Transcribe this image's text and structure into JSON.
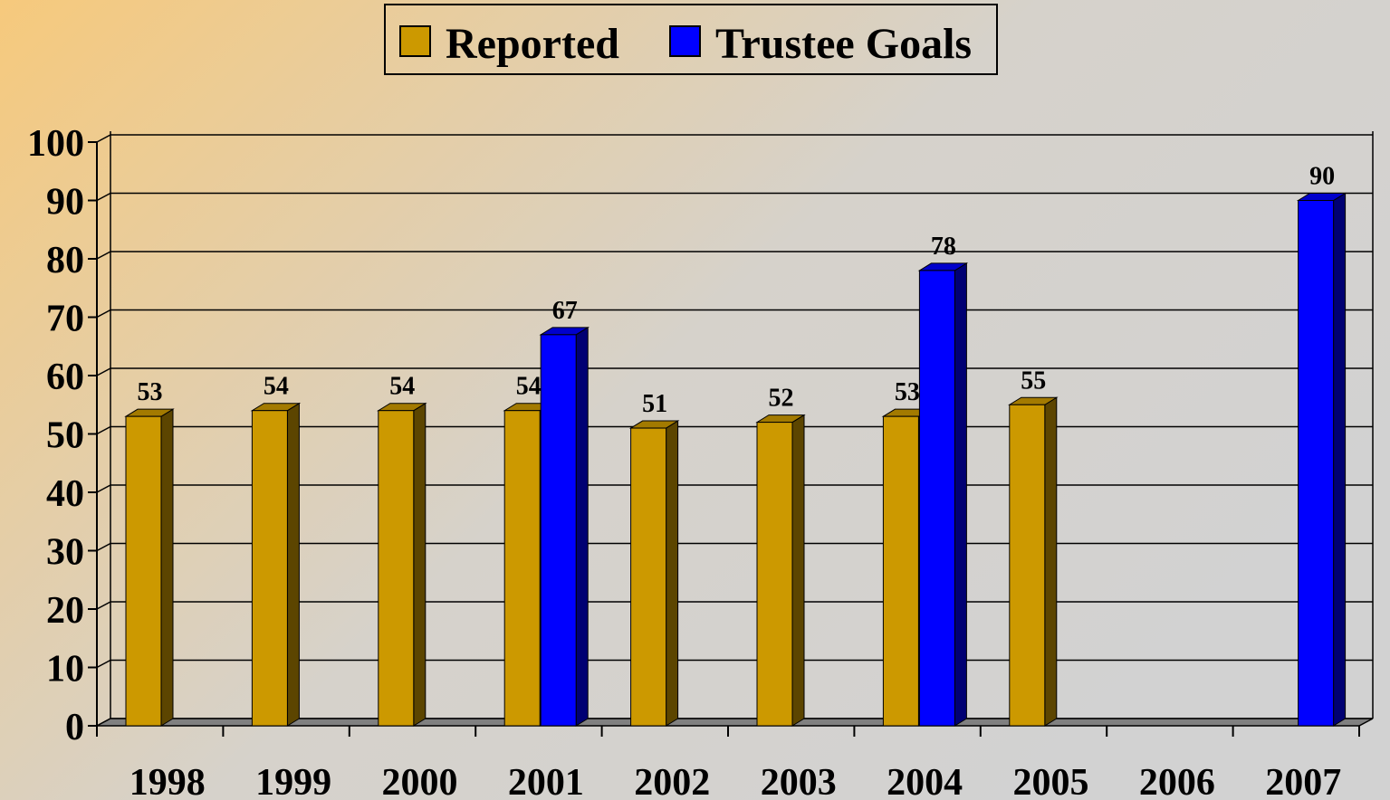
{
  "chart_data": {
    "type": "bar3d",
    "categories": [
      "1998",
      "1999",
      "2000",
      "2001",
      "2002",
      "2003",
      "2004",
      "2005",
      "2006",
      "2007"
    ],
    "series": [
      {
        "name": "Reported",
        "color": "#cc9900",
        "values": [
          53,
          54,
          54,
          54,
          51,
          52,
          53,
          55,
          null,
          null
        ]
      },
      {
        "name": "Trustee Goals",
        "color": "#0000ff",
        "values": [
          null,
          null,
          null,
          67,
          null,
          null,
          78,
          null,
          null,
          90
        ]
      }
    ],
    "ylim": [
      0,
      100
    ],
    "yticks": [
      0,
      10,
      20,
      30,
      40,
      50,
      60,
      70,
      80,
      90,
      100
    ],
    "grid": true
  }
}
